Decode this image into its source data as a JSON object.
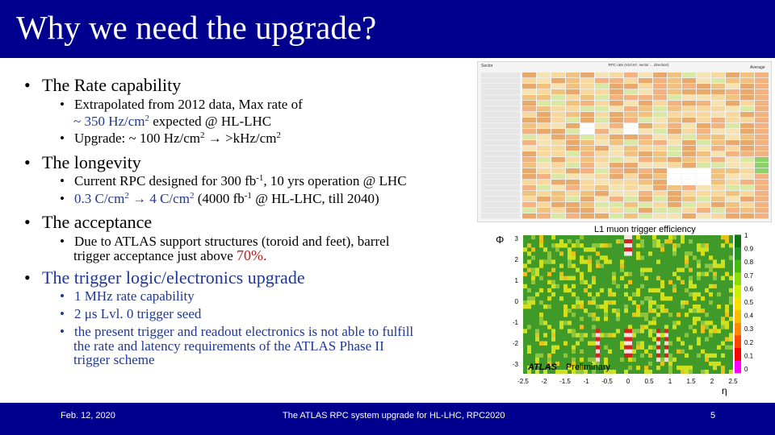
{
  "title": "Why we need the upgrade?",
  "bullets": {
    "rate": {
      "heading": "The Rate capability",
      "sub1_a": "Extrapolated from 2012 data, Max rate of",
      "sub1_b": "~ 350 Hz/cm",
      "sub1_c": "expected @ HL-LHC",
      "sub2_a": "Upgrade: ~ 100 Hz/cm",
      "sub2_b": ">kHz/cm"
    },
    "longevity": {
      "heading": "The longevity",
      "sub1_a": "Current RPC designed for 300 fb",
      "sub1_b": "-1",
      "sub1_c": ", 10 yrs operation @ LHC",
      "sub2_a": "0.3 C/cm",
      "sub2_b": "4 C/cm",
      "sub2_c": "(4000 fb",
      "sub2_d": "-1",
      "sub2_e": "@ HL-LHC, till 2040)"
    },
    "acceptance": {
      "heading": "The acceptance",
      "sub1_a": "Due to ATLAS support structures (toroid and feet), barrel",
      "sub1_b": "trigger acceptance just above",
      "sub1_c": "70%."
    },
    "trigger": {
      "heading": "The trigger logic/electronics upgrade",
      "sub1": "1 MHz rate capability",
      "sub2": "2 μs Lvl. 0 trigger seed",
      "sub3_a": "the present trigger and readout electronics is not able to fulfill",
      "sub3_b": "the rate and latency requirements of the ATLAS Phase II",
      "sub3_c": "trigger scheme"
    }
  },
  "sup2": "2",
  "arrow": "→",
  "figure": {
    "heatmap_title": "L1 muon trigger efficiency",
    "phi_label": "Φ",
    "eta_label": "η",
    "atlas": "ATLAS",
    "preliminary": "Preliminary",
    "y_ticks": [
      "3",
      "2",
      "1",
      "0",
      "-1",
      "-2",
      "-3"
    ],
    "x_ticks": [
      "-2.5",
      "-2",
      "-1.5",
      "-1",
      "-0.5",
      "0",
      "0.5",
      "1",
      "1.5",
      "2",
      "2.5"
    ],
    "z_ticks": [
      "1",
      "0.9",
      "0.8",
      "0.7",
      "0.6",
      "0.5",
      "0.4",
      "0.3",
      "0.2",
      "0.1",
      "0"
    ],
    "table_header": "RPC rate (Hz/cm², sector ... direction)",
    "table_sector_label": "Sector",
    "table_average_label": "Average"
  },
  "footer": {
    "date": "Feb. 12, 2020",
    "center": "The ATLAS RPC system upgrade for HL-LHC, RPC2020",
    "page": "5"
  },
  "colors": {
    "title_bg": "#00008e",
    "accent_blue": "#1f3896",
    "accent_red": "#b22222"
  }
}
